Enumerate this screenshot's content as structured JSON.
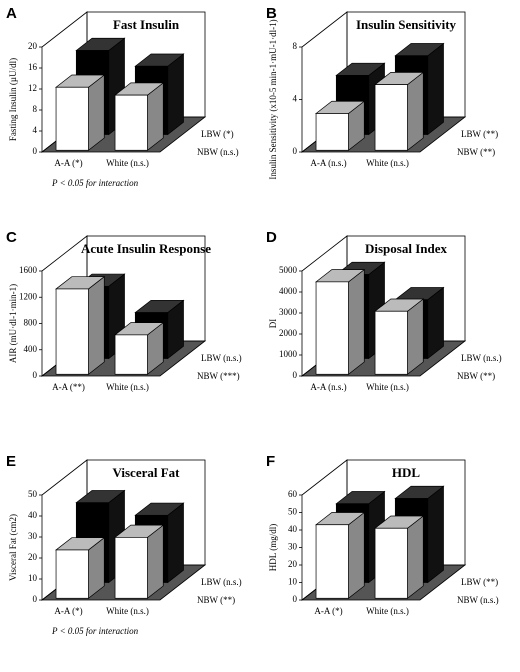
{
  "chart_data": [
    {
      "type": "bar3d",
      "panel": "A",
      "title": "Fast Insulin",
      "ylabel": "Fasting Insulin (µU/dl)",
      "footnote": "P < 0.05 for interaction",
      "categories": [
        "A-A (*)",
        "White (n.s.)"
      ],
      "series": [
        {
          "name": "NBW (n.s.)",
          "color": "#ffffff",
          "values": [
            12,
            10.5
          ]
        },
        {
          "name": "LBW (*)",
          "color": "#000000",
          "values": [
            16,
            13
          ]
        }
      ],
      "ylim": [
        0,
        20
      ],
      "yticks": [
        0,
        4,
        8,
        12,
        16,
        20
      ]
    },
    {
      "type": "bar3d",
      "panel": "B",
      "title": "Insulin Sensitivity",
      "ylabel": "Insulin Sensitivity (x10-5 min-1·mU-1·dl-1)",
      "categories": [
        "A-A (n.s.)",
        "White (n.s.)"
      ],
      "series": [
        {
          "name": "NBW (**)",
          "color": "#ffffff",
          "values": [
            2.8,
            5
          ]
        },
        {
          "name": "LBW (**)",
          "color": "#000000",
          "values": [
            4.5,
            6
          ]
        }
      ],
      "ylim": [
        0,
        8
      ],
      "yticks": [
        0,
        4,
        8
      ]
    },
    {
      "type": "bar3d",
      "panel": "C",
      "title": "Acute Insulin Response",
      "ylabel": "AIR (mU·dl-1·min-1)",
      "categories": [
        "A-A (**)",
        "White (n.s.)"
      ],
      "series": [
        {
          "name": "NBW (***)",
          "color": "#ffffff",
          "values": [
            1300,
            600
          ]
        },
        {
          "name": "LBW (n.s.)",
          "color": "#000000",
          "values": [
            1100,
            700
          ]
        }
      ],
      "ylim": [
        0,
        1600
      ],
      "yticks": [
        0,
        400,
        800,
        1200,
        1600
      ]
    },
    {
      "type": "bar3d",
      "panel": "D",
      "title": "Disposal Index",
      "ylabel": "DI",
      "categories": [
        "A-A (n.s.)",
        "White (n.s.)"
      ],
      "series": [
        {
          "name": "NBW (**)",
          "color": "#ffffff",
          "values": [
            4400,
            3000
          ]
        },
        {
          "name": "LBW (n.s.)",
          "color": "#000000",
          "values": [
            4000,
            2800
          ]
        }
      ],
      "ylim": [
        0,
        5000
      ],
      "yticks": [
        0,
        1000,
        2000,
        3000,
        4000,
        5000
      ]
    },
    {
      "type": "bar3d",
      "panel": "E",
      "title": "Visceral Fat",
      "ylabel": "Visceral Fat (cm2)",
      "footnote": "P < 0.05 for interaction",
      "categories": [
        "A-A (*)",
        "White (n.s.)"
      ],
      "series": [
        {
          "name": "NBW (**)",
          "color": "#ffffff",
          "values": [
            23,
            29
          ]
        },
        {
          "name": "LBW (n.s.)",
          "color": "#000000",
          "values": [
            38,
            32
          ]
        }
      ],
      "ylim": [
        0,
        50
      ],
      "yticks": [
        0,
        10,
        20,
        30,
        40,
        50
      ]
    },
    {
      "type": "bar3d",
      "panel": "F",
      "title": "HDL",
      "ylabel": "HDL (mg/dl)",
      "categories": [
        "A-A (*)",
        "White (n.s.)"
      ],
      "series": [
        {
          "name": "NBW (n.s.)",
          "color": "#ffffff",
          "values": [
            42,
            40
          ]
        },
        {
          "name": "LBW (**)",
          "color": "#000000",
          "values": [
            45,
            48
          ]
        }
      ],
      "ylim": [
        0,
        60
      ],
      "yticks": [
        0,
        10,
        20,
        30,
        40,
        50,
        60
      ]
    }
  ]
}
